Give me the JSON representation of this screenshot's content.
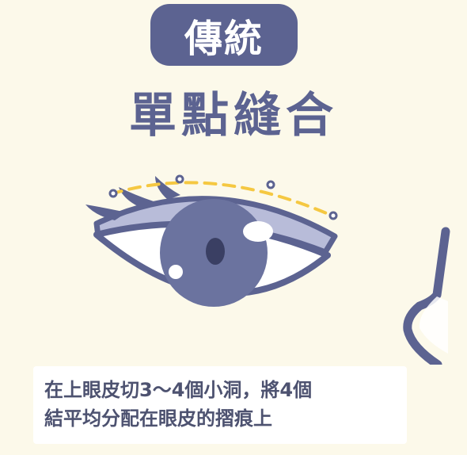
{
  "badge": {
    "label": "傳統"
  },
  "title": "單點縫合",
  "caption": {
    "line1": "在上眼皮切3～4個小洞，將4個",
    "line2": "結平均分配在眼皮的摺痕上"
  },
  "colors": {
    "background": "#fcf9ea",
    "primary": "#5c6391",
    "stitch": "#f5c842",
    "iris": "#6b739f",
    "eyelid": "#b8bcd9"
  }
}
